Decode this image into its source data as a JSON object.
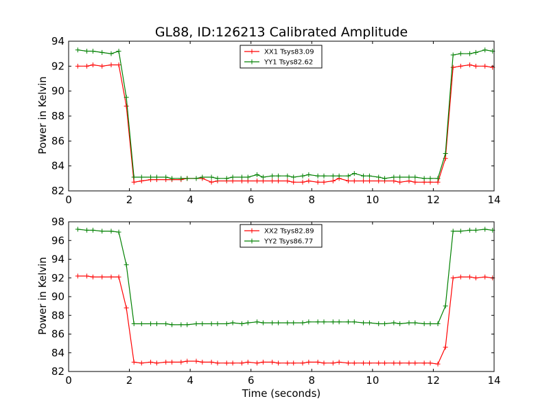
{
  "figure": {
    "title": "GL88, ID:126213 Calibrated Amplitude",
    "xlabel": "Time (seconds)",
    "ylabel": "Power in Kelvin"
  },
  "chart_data": [
    {
      "type": "line",
      "title": "GL88, ID:126213 Calibrated Amplitude",
      "xlabel": "",
      "ylabel": "Power in Kelvin",
      "xlim": [
        0,
        14
      ],
      "ylim": [
        82,
        94
      ],
      "xticks": [
        "0",
        "2",
        "4",
        "6",
        "8",
        "10",
        "12",
        "14"
      ],
      "yticks": [
        "82",
        "84",
        "86",
        "88",
        "90",
        "92",
        "94"
      ],
      "grid": false,
      "legend_position": "top-center",
      "x": [
        0.3,
        0.6,
        0.8,
        1.1,
        1.4,
        1.65,
        1.9,
        2.15,
        2.4,
        2.7,
        2.9,
        3.2,
        3.4,
        3.7,
        3.9,
        4.2,
        4.4,
        4.7,
        4.9,
        5.2,
        5.4,
        5.7,
        5.9,
        6.2,
        6.4,
        6.7,
        6.9,
        7.2,
        7.4,
        7.7,
        7.9,
        8.2,
        8.4,
        8.7,
        8.9,
        9.2,
        9.4,
        9.7,
        9.9,
        10.2,
        10.4,
        10.7,
        10.9,
        11.2,
        11.4,
        11.7,
        11.9,
        12.15,
        12.4,
        12.65,
        12.9,
        13.2,
        13.4,
        13.7,
        13.95
      ],
      "series": [
        {
          "name": "XX1 Tsys83.09",
          "color": "#ff0000",
          "values": [
            92.0,
            92.0,
            92.1,
            92.0,
            92.1,
            92.1,
            88.8,
            82.7,
            82.8,
            82.9,
            82.9,
            82.9,
            82.9,
            82.9,
            83.0,
            83.0,
            83.0,
            82.7,
            82.8,
            82.8,
            82.8,
            82.8,
            82.8,
            82.8,
            82.8,
            82.8,
            82.8,
            82.8,
            82.7,
            82.7,
            82.8,
            82.7,
            82.7,
            82.8,
            83.0,
            82.8,
            82.8,
            82.8,
            82.8,
            82.8,
            82.8,
            82.8,
            82.7,
            82.8,
            82.7,
            82.7,
            82.7,
            82.7,
            84.6,
            91.9,
            92.0,
            92.1,
            92.0,
            92.0,
            91.9
          ]
        },
        {
          "name": "YY1 Tsys82.62",
          "color": "#008000",
          "values": [
            93.3,
            93.2,
            93.2,
            93.1,
            93.0,
            93.2,
            89.5,
            83.1,
            83.1,
            83.1,
            83.1,
            83.1,
            83.0,
            83.0,
            83.0,
            83.0,
            83.1,
            83.1,
            83.0,
            83.0,
            83.1,
            83.1,
            83.1,
            83.3,
            83.1,
            83.2,
            83.2,
            83.2,
            83.1,
            83.2,
            83.3,
            83.2,
            83.2,
            83.2,
            83.2,
            83.2,
            83.4,
            83.2,
            83.2,
            83.1,
            83.0,
            83.1,
            83.1,
            83.1,
            83.1,
            83.0,
            83.0,
            83.0,
            85.0,
            92.9,
            93.0,
            93.0,
            93.1,
            93.3,
            93.2
          ]
        }
      ]
    },
    {
      "type": "line",
      "title": "",
      "xlabel": "Time (seconds)",
      "ylabel": "Power in Kelvin",
      "xlim": [
        0,
        14
      ],
      "ylim": [
        82,
        98
      ],
      "xticks": [
        "0",
        "2",
        "4",
        "6",
        "8",
        "10",
        "12",
        "14"
      ],
      "yticks": [
        "82",
        "84",
        "86",
        "88",
        "90",
        "92",
        "94",
        "96",
        "98"
      ],
      "grid": false,
      "legend_position": "top-center",
      "x": [
        0.3,
        0.6,
        0.8,
        1.1,
        1.4,
        1.65,
        1.9,
        2.15,
        2.4,
        2.7,
        2.9,
        3.2,
        3.4,
        3.7,
        3.9,
        4.2,
        4.4,
        4.7,
        4.9,
        5.2,
        5.4,
        5.7,
        5.9,
        6.2,
        6.4,
        6.7,
        6.9,
        7.2,
        7.4,
        7.7,
        7.9,
        8.2,
        8.4,
        8.7,
        8.9,
        9.2,
        9.4,
        9.7,
        9.9,
        10.2,
        10.4,
        10.7,
        10.9,
        11.2,
        11.4,
        11.7,
        11.9,
        12.15,
        12.4,
        12.65,
        12.9,
        13.2,
        13.4,
        13.7,
        13.95
      ],
      "series": [
        {
          "name": "XX2 Tsys82.89",
          "color": "#ff0000",
          "values": [
            92.2,
            92.2,
            92.1,
            92.1,
            92.1,
            92.1,
            88.8,
            83.0,
            82.9,
            83.0,
            82.9,
            83.0,
            83.0,
            83.0,
            83.1,
            83.1,
            83.0,
            83.0,
            82.9,
            82.9,
            82.9,
            82.9,
            83.0,
            82.9,
            83.0,
            83.0,
            82.9,
            82.9,
            82.9,
            82.9,
            83.0,
            83.0,
            82.9,
            82.9,
            83.0,
            82.9,
            82.9,
            82.9,
            82.9,
            82.9,
            82.9,
            82.9,
            82.9,
            82.9,
            82.9,
            82.9,
            82.9,
            82.8,
            84.6,
            92.0,
            92.1,
            92.1,
            92.0,
            92.1,
            92.0
          ]
        },
        {
          "name": "YY2 Tsys86.77",
          "color": "#008000",
          "values": [
            97.2,
            97.1,
            97.1,
            97.0,
            97.0,
            96.9,
            93.4,
            87.1,
            87.1,
            87.1,
            87.1,
            87.1,
            87.0,
            87.0,
            87.0,
            87.1,
            87.1,
            87.1,
            87.1,
            87.1,
            87.2,
            87.1,
            87.2,
            87.3,
            87.2,
            87.2,
            87.2,
            87.2,
            87.2,
            87.2,
            87.3,
            87.3,
            87.3,
            87.3,
            87.3,
            87.3,
            87.3,
            87.2,
            87.2,
            87.1,
            87.1,
            87.2,
            87.1,
            87.2,
            87.2,
            87.1,
            87.1,
            87.1,
            89.0,
            97.0,
            97.0,
            97.1,
            97.1,
            97.2,
            97.1
          ]
        }
      ]
    }
  ]
}
